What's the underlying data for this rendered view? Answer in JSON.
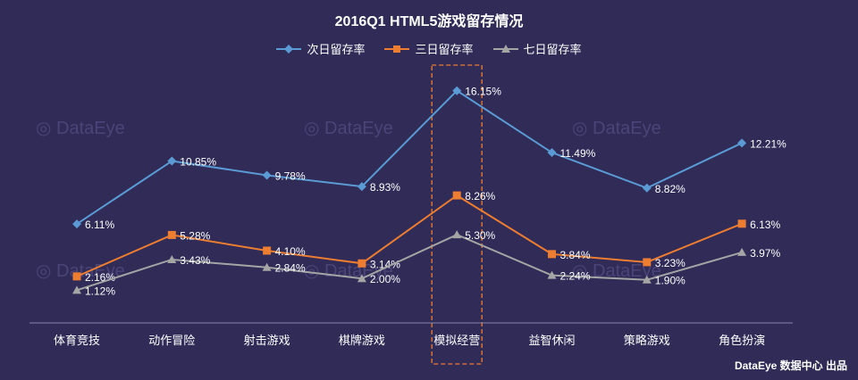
{
  "chart_data": {
    "type": "line",
    "title": "2016Q1 HTML5游戏留存情况",
    "categories": [
      "体育竞技",
      "动作冒险",
      "射击游戏",
      "棋牌游戏",
      "模拟经营",
      "益智休闲",
      "策略游戏",
      "角色扮演"
    ],
    "series": [
      {
        "name": "次日留存率",
        "color": "#5b9bd5",
        "marker": "diamond",
        "values": [
          6.11,
          10.85,
          9.78,
          8.93,
          16.15,
          11.49,
          8.82,
          12.21
        ],
        "labels": [
          "6.11%",
          "10.85%",
          "9.78%",
          "8.93%",
          "16.15%",
          "11.49%",
          "8.82%",
          "12.21%"
        ]
      },
      {
        "name": "三日留存率",
        "color": "#ed7d31",
        "marker": "square",
        "values": [
          2.16,
          5.28,
          4.1,
          3.14,
          8.26,
          3.84,
          3.23,
          6.13
        ],
        "labels": [
          "2.16%",
          "5.28%",
          "4.10%",
          "3.14%",
          "8.26%",
          "3.84%",
          "3.23%",
          "6.13%"
        ]
      },
      {
        "name": "七日留存率",
        "color": "#a5a5a5",
        "marker": "triangle",
        "values": [
          1.12,
          3.43,
          2.84,
          2.0,
          5.3,
          2.24,
          1.9,
          3.97
        ],
        "labels": [
          "1.12%",
          "3.43%",
          "2.84%",
          "2.00%",
          "5.30%",
          "2.24%",
          "1.90%",
          "3.97%"
        ]
      }
    ],
    "ylim": [
      0,
      18
    ],
    "grid": false,
    "legend": "top-center",
    "highlight_category": "模拟经营",
    "highlight_color": "#ed7d31"
  },
  "watermark": "DataEye",
  "credit": "DataEye 数据中心 出品",
  "colors": {
    "background": "#302b57",
    "axis": "#8a86ad"
  }
}
